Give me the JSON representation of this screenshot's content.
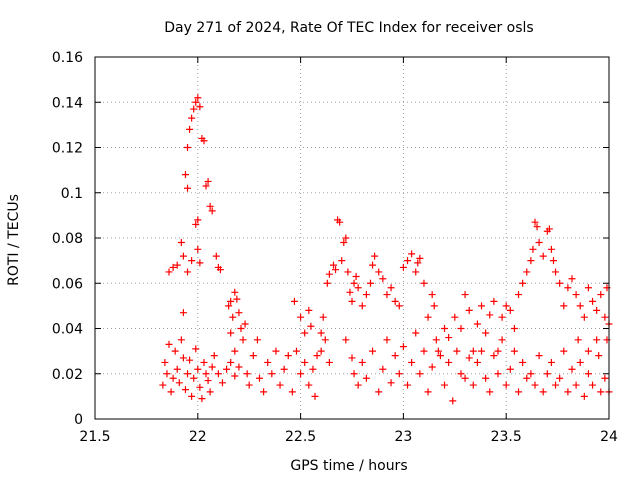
{
  "chart_data": {
    "type": "scatter",
    "title": "Day 271 of 2024, Rate Of TEC Index for receiver osls",
    "xlabel": "GPS time / hours",
    "ylabel": "ROTI / TECUs",
    "xlim": [
      21.5,
      24
    ],
    "ylim": [
      0,
      0.16
    ],
    "x_ticks": [
      21.5,
      22,
      22.5,
      23,
      23.5,
      24
    ],
    "x_tick_labels": [
      "21.5",
      "22",
      "22.5",
      "23",
      "23.5",
      "24"
    ],
    "y_ticks": [
      0,
      0.02,
      0.04,
      0.06,
      0.08,
      0.1,
      0.12,
      0.14,
      0.16
    ],
    "y_tick_labels": [
      "0",
      "0.02",
      "0.04",
      "0.06",
      "0.08",
      "0.1",
      "0.12",
      "0.14",
      "0.16"
    ],
    "grid": true,
    "marker": "+",
    "color": "#ff0000",
    "series": [
      {
        "name": "ROTI",
        "points": [
          [
            21.83,
            0.015
          ],
          [
            21.84,
            0.025
          ],
          [
            21.85,
            0.02
          ],
          [
            21.86,
            0.033
          ],
          [
            21.87,
            0.012
          ],
          [
            21.88,
            0.018
          ],
          [
            21.89,
            0.03
          ],
          [
            21.9,
            0.022
          ],
          [
            21.91,
            0.016
          ],
          [
            21.92,
            0.035
          ],
          [
            21.93,
            0.027
          ],
          [
            21.94,
            0.013
          ],
          [
            21.95,
            0.02
          ],
          [
            21.96,
            0.026
          ],
          [
            21.97,
            0.01
          ],
          [
            21.98,
            0.018
          ],
          [
            21.99,
            0.031
          ],
          [
            22.0,
            0.022
          ],
          [
            22.01,
            0.014
          ],
          [
            22.02,
            0.009
          ],
          [
            22.03,
            0.025
          ],
          [
            22.04,
            0.02
          ],
          [
            22.05,
            0.017
          ],
          [
            22.06,
            0.012
          ],
          [
            22.07,
            0.023
          ],
          [
            22.08,
            0.028
          ],
          [
            22.1,
            0.02
          ],
          [
            22.12,
            0.016
          ],
          [
            22.14,
            0.022
          ],
          [
            22.16,
            0.025
          ],
          [
            22.18,
            0.019
          ],
          [
            22.2,
            0.023
          ],
          [
            21.86,
            0.065
          ],
          [
            21.88,
            0.067
          ],
          [
            21.9,
            0.068
          ],
          [
            21.92,
            0.078
          ],
          [
            21.93,
            0.072
          ],
          [
            21.95,
            0.065
          ],
          [
            21.97,
            0.07
          ],
          [
            21.93,
            0.047
          ],
          [
            21.94,
            0.108
          ],
          [
            21.95,
            0.12
          ],
          [
            21.95,
            0.102
          ],
          [
            21.96,
            0.128
          ],
          [
            21.97,
            0.133
          ],
          [
            21.98,
            0.137
          ],
          [
            21.99,
            0.14
          ],
          [
            22.0,
            0.142
          ],
          [
            22.01,
            0.138
          ],
          [
            22.02,
            0.124
          ],
          [
            22.03,
            0.123
          ],
          [
            22.04,
            0.103
          ],
          [
            22.05,
            0.105
          ],
          [
            22.06,
            0.094
          ],
          [
            22.07,
            0.092
          ],
          [
            22.0,
            0.088
          ],
          [
            21.99,
            0.086
          ],
          [
            22.0,
            0.075
          ],
          [
            22.01,
            0.069
          ],
          [
            22.09,
            0.072
          ],
          [
            22.1,
            0.067
          ],
          [
            22.11,
            0.066
          ],
          [
            22.15,
            0.05
          ],
          [
            22.16,
            0.052
          ],
          [
            22.17,
            0.045
          ],
          [
            22.18,
            0.056
          ],
          [
            22.19,
            0.053
          ],
          [
            22.2,
            0.047
          ],
          [
            22.21,
            0.04
          ],
          [
            22.22,
            0.035
          ],
          [
            22.16,
            0.038
          ],
          [
            22.18,
            0.03
          ],
          [
            22.23,
            0.042
          ],
          [
            22.24,
            0.02
          ],
          [
            22.25,
            0.015
          ],
          [
            22.27,
            0.028
          ],
          [
            22.29,
            0.035
          ],
          [
            22.3,
            0.018
          ],
          [
            22.32,
            0.012
          ],
          [
            22.34,
            0.025
          ],
          [
            22.36,
            0.02
          ],
          [
            22.38,
            0.03
          ],
          [
            22.4,
            0.015
          ],
          [
            22.42,
            0.022
          ],
          [
            22.44,
            0.028
          ],
          [
            22.46,
            0.012
          ],
          [
            22.48,
            0.03
          ],
          [
            22.5,
            0.02
          ],
          [
            22.52,
            0.025
          ],
          [
            22.54,
            0.015
          ],
          [
            22.56,
            0.022
          ],
          [
            22.57,
            0.01
          ],
          [
            22.58,
            0.028
          ],
          [
            22.6,
            0.03
          ],
          [
            22.62,
            0.035
          ],
          [
            22.64,
            0.025
          ],
          [
            22.47,
            0.052
          ],
          [
            22.5,
            0.045
          ],
          [
            22.52,
            0.038
          ],
          [
            22.54,
            0.048
          ],
          [
            22.55,
            0.041
          ],
          [
            22.6,
            0.038
          ],
          [
            22.61,
            0.045
          ],
          [
            22.63,
            0.06
          ],
          [
            22.64,
            0.064
          ],
          [
            22.66,
            0.068
          ],
          [
            22.67,
            0.066
          ],
          [
            22.68,
            0.088
          ],
          [
            22.69,
            0.087
          ],
          [
            22.7,
            0.07
          ],
          [
            22.71,
            0.078
          ],
          [
            22.72,
            0.08
          ],
          [
            22.73,
            0.065
          ],
          [
            22.74,
            0.056
          ],
          [
            22.75,
            0.052
          ],
          [
            22.76,
            0.06
          ],
          [
            22.77,
            0.063
          ],
          [
            22.78,
            0.058
          ],
          [
            22.8,
            0.05
          ],
          [
            22.82,
            0.055
          ],
          [
            22.84,
            0.06
          ],
          [
            22.85,
            0.068
          ],
          [
            22.86,
            0.072
          ],
          [
            22.88,
            0.065
          ],
          [
            22.9,
            0.062
          ],
          [
            22.92,
            0.055
          ],
          [
            22.94,
            0.058
          ],
          [
            22.96,
            0.052
          ],
          [
            22.98,
            0.05
          ],
          [
            23.0,
            0.067
          ],
          [
            23.02,
            0.07
          ],
          [
            23.04,
            0.073
          ],
          [
            23.06,
            0.065
          ],
          [
            23.07,
            0.069
          ],
          [
            23.08,
            0.071
          ],
          [
            23.1,
            0.06
          ],
          [
            22.72,
            0.035
          ],
          [
            22.75,
            0.027
          ],
          [
            22.76,
            0.02
          ],
          [
            22.78,
            0.015
          ],
          [
            22.8,
            0.025
          ],
          [
            22.82,
            0.018
          ],
          [
            22.85,
            0.03
          ],
          [
            22.88,
            0.012
          ],
          [
            22.9,
            0.022
          ],
          [
            22.92,
            0.035
          ],
          [
            22.94,
            0.016
          ],
          [
            22.96,
            0.028
          ],
          [
            22.98,
            0.02
          ],
          [
            23.0,
            0.032
          ],
          [
            23.02,
            0.015
          ],
          [
            23.04,
            0.025
          ],
          [
            23.06,
            0.038
          ],
          [
            23.08,
            0.02
          ],
          [
            23.1,
            0.03
          ],
          [
            23.12,
            0.012
          ],
          [
            23.14,
            0.023
          ],
          [
            23.16,
            0.035
          ],
          [
            23.18,
            0.028
          ],
          [
            23.2,
            0.015
          ],
          [
            23.22,
            0.025
          ],
          [
            23.24,
            0.008
          ],
          [
            23.26,
            0.03
          ],
          [
            23.28,
            0.02
          ],
          [
            23.3,
            0.018
          ],
          [
            23.32,
            0.027
          ],
          [
            23.12,
            0.045
          ],
          [
            23.14,
            0.055
          ],
          [
            23.15,
            0.05
          ],
          [
            23.17,
            0.03
          ],
          [
            23.2,
            0.04
          ],
          [
            23.22,
            0.036
          ],
          [
            23.25,
            0.045
          ],
          [
            23.28,
            0.04
          ],
          [
            23.3,
            0.055
          ],
          [
            23.32,
            0.048
          ],
          [
            23.34,
            0.03
          ],
          [
            23.36,
            0.042
          ],
          [
            23.38,
            0.05
          ],
          [
            23.4,
            0.038
          ],
          [
            23.42,
            0.046
          ],
          [
            23.44,
            0.052
          ],
          [
            23.46,
            0.03
          ],
          [
            23.48,
            0.045
          ],
          [
            23.5,
            0.05
          ],
          [
            23.52,
            0.048
          ],
          [
            23.54,
            0.04
          ],
          [
            23.56,
            0.055
          ],
          [
            23.58,
            0.06
          ],
          [
            23.6,
            0.065
          ],
          [
            23.62,
            0.07
          ],
          [
            23.63,
            0.075
          ],
          [
            23.64,
            0.087
          ],
          [
            23.65,
            0.085
          ],
          [
            23.66,
            0.078
          ],
          [
            23.68,
            0.072
          ],
          [
            23.7,
            0.083
          ],
          [
            23.71,
            0.084
          ],
          [
            23.72,
            0.075
          ],
          [
            23.73,
            0.07
          ],
          [
            23.74,
            0.065
          ],
          [
            23.76,
            0.06
          ],
          [
            23.78,
            0.05
          ],
          [
            23.8,
            0.058
          ],
          [
            23.82,
            0.062
          ],
          [
            23.84,
            0.055
          ],
          [
            23.86,
            0.05
          ],
          [
            23.88,
            0.045
          ],
          [
            23.9,
            0.058
          ],
          [
            23.92,
            0.052
          ],
          [
            23.94,
            0.048
          ],
          [
            23.96,
            0.055
          ],
          [
            23.98,
            0.045
          ],
          [
            23.99,
            0.058
          ],
          [
            24.0,
            0.042
          ],
          [
            23.34,
            0.015
          ],
          [
            23.36,
            0.025
          ],
          [
            23.38,
            0.03
          ],
          [
            23.4,
            0.018
          ],
          [
            23.42,
            0.012
          ],
          [
            23.44,
            0.028
          ],
          [
            23.46,
            0.02
          ],
          [
            23.48,
            0.035
          ],
          [
            23.5,
            0.015
          ],
          [
            23.52,
            0.022
          ],
          [
            23.54,
            0.03
          ],
          [
            23.56,
            0.012
          ],
          [
            23.58,
            0.025
          ],
          [
            23.6,
            0.018
          ],
          [
            23.62,
            0.02
          ],
          [
            23.64,
            0.015
          ],
          [
            23.66,
            0.028
          ],
          [
            23.68,
            0.012
          ],
          [
            23.7,
            0.02
          ],
          [
            23.72,
            0.025
          ],
          [
            23.74,
            0.015
          ],
          [
            23.76,
            0.018
          ],
          [
            23.78,
            0.03
          ],
          [
            23.8,
            0.012
          ],
          [
            23.82,
            0.022
          ],
          [
            23.84,
            0.015
          ],
          [
            23.86,
            0.025
          ],
          [
            23.88,
            0.01
          ],
          [
            23.9,
            0.02
          ],
          [
            23.92,
            0.015
          ],
          [
            23.94,
            0.035
          ],
          [
            23.96,
            0.012
          ],
          [
            23.98,
            0.018
          ],
          [
            24.0,
            0.012
          ],
          [
            23.85,
            0.035
          ],
          [
            23.9,
            0.03
          ],
          [
            23.95,
            0.028
          ],
          [
            23.99,
            0.035
          ]
        ]
      }
    ]
  }
}
